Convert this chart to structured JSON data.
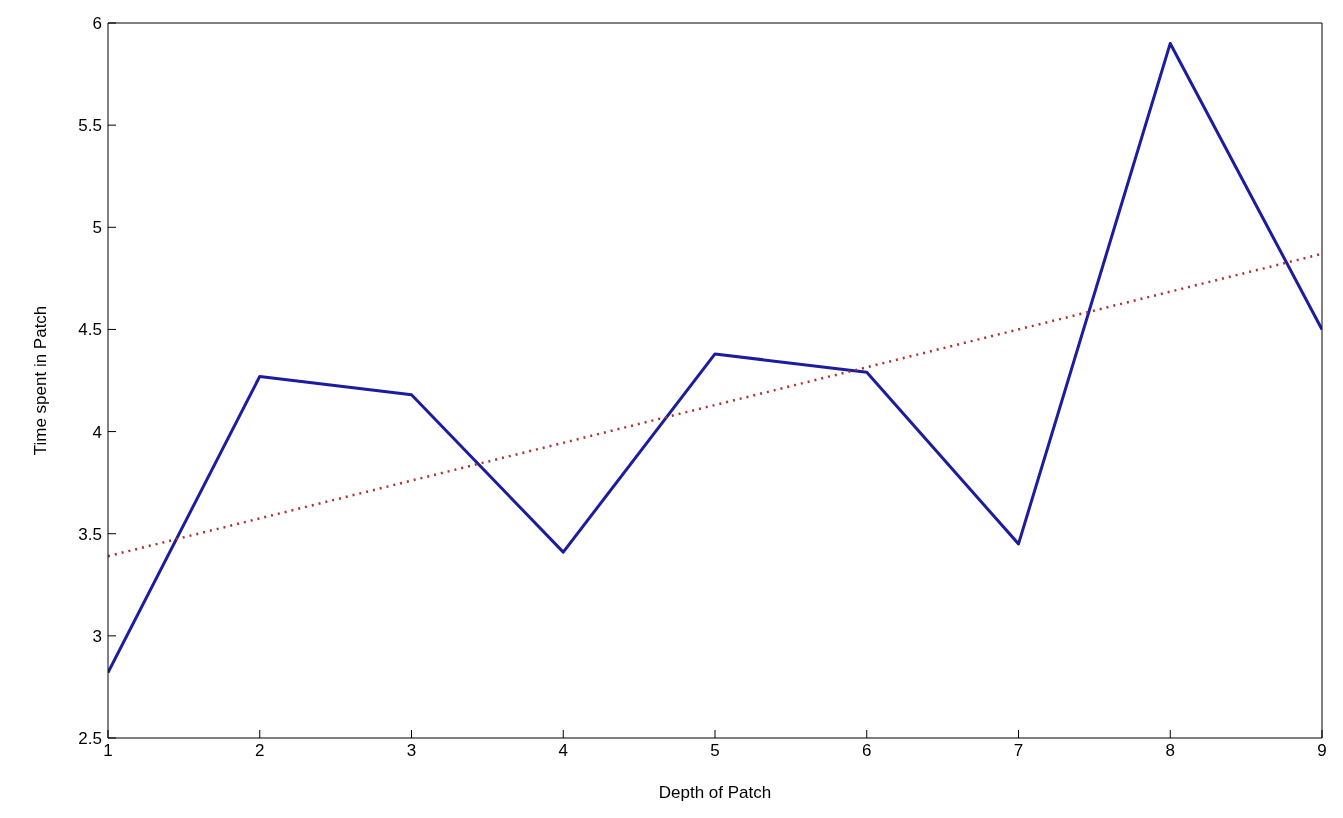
{
  "chart_data": {
    "type": "line",
    "xlabel": "Depth of Patch",
    "ylabel": "Time spent in Patch",
    "x": [
      1,
      2,
      3,
      4,
      5,
      6,
      7,
      8,
      9
    ],
    "series": [
      {
        "color": "#1c1ca0",
        "line_style": "solid",
        "values": [
          2.82,
          4.27,
          4.18,
          3.41,
          4.38,
          4.29,
          3.45,
          5.9,
          4.5
        ]
      },
      {
        "type": "line",
        "color": "#b03030",
        "line_style": "dotted",
        "x": [
          1,
          9
        ],
        "values": [
          3.39,
          4.87
        ]
      }
    ],
    "xlim": [
      1,
      9
    ],
    "xticks": [
      1,
      2,
      3,
      4,
      5,
      6,
      7,
      8,
      9
    ],
    "ylim": [
      2.5,
      6
    ],
    "yticks": [
      2.5,
      3,
      3.5,
      4,
      4.5,
      5,
      5.5,
      6
    ],
    "marker": "none"
  }
}
